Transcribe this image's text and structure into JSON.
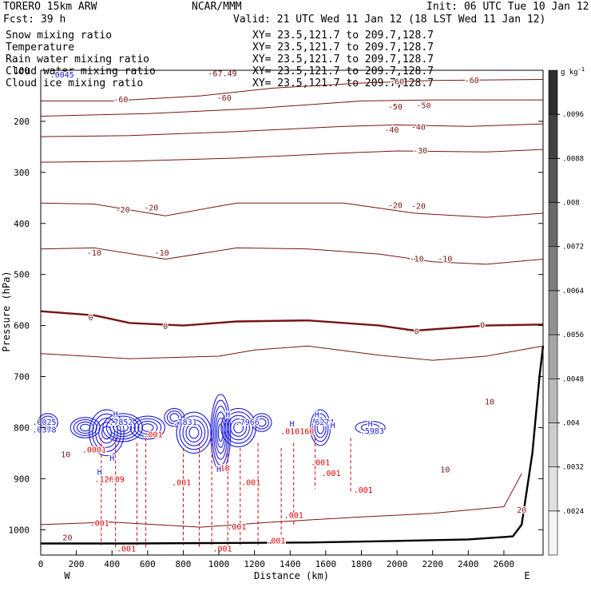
{
  "header": {
    "model": "TORERO  15km ARW",
    "center": "NCAR/MMM",
    "init": "Init: 06 UTC Tue 10 Jan 12",
    "fcst": "Fcst:   39 h",
    "valid": "Valid: 21 UTC Wed 11 Jan 12 (18 LST Wed 11 Jan 12)"
  },
  "fields": [
    {
      "name": "Snow mixing ratio",
      "xy": "XY=  23.5,121.7 to 209.7,128.7",
      "color": "#000000"
    },
    {
      "name": "Temperature",
      "xy": "XY=  23.5,121.7 to 209.7,128.7",
      "color": "#cc0000"
    },
    {
      "name": "Rain water mixing ratio",
      "xy": "XY=  23.5,121.7 to 209.7,128.7",
      "color": "#cc0000"
    },
    {
      "name": "Cloud water mixing ratio",
      "xy": "XY=  23.5,121.7 to 209.7,128.7",
      "color": "#1010cc"
    },
    {
      "name": "Cloud ice mixing ratio",
      "xy": "XY=  23.5,121.7 to 209.7,128.7",
      "color": "#000000"
    }
  ],
  "colors": {
    "temperature": "#7a1414",
    "rain": "#e00000",
    "cloud_water": "#1a1ae0",
    "terrain": "#000000"
  },
  "chart_data": {
    "type": "contour",
    "xlabel": "Distance (km)",
    "ylabel": "Pressure (hPa)",
    "xlim": [
      0,
      2820
    ],
    "ylim": [
      1050,
      100
    ],
    "xticks": [
      0,
      200,
      400,
      600,
      800,
      1000,
      1200,
      1400,
      1600,
      1800,
      2000,
      2200,
      2400,
      2600
    ],
    "yticks": [
      100,
      200,
      300,
      400,
      500,
      600,
      700,
      800,
      900,
      1000
    ],
    "endpoints": {
      "left": "W",
      "right": "E"
    },
    "colorbar": {
      "unit": "g kg",
      "unit_exp": "-1",
      "ticks": [
        ".0096",
        ".0088",
        ".008",
        ".0072",
        ".0064",
        ".0056",
        ".0048",
        ".004",
        ".0032",
        ".0024"
      ],
      "tick_values": [
        0.0096,
        0.0088,
        0.008,
        0.0072,
        0.0064,
        0.0056,
        0.0048,
        0.004,
        0.0032,
        0.0024
      ],
      "range": [
        0.0016,
        0.0104
      ]
    },
    "temperature_contours": [
      {
        "level": -60,
        "p": [
          [
            0,
            160
          ],
          [
            400,
            160
          ],
          [
            900,
            150
          ],
          [
            1300,
            135
          ],
          [
            1800,
            125
          ],
          [
            2200,
            120
          ],
          [
            2820,
            118
          ]
        ]
      },
      {
        "level": -50,
        "p": [
          [
            0,
            190
          ],
          [
            600,
            185
          ],
          [
            1200,
            175
          ],
          [
            1800,
            160
          ],
          [
            2200,
            158
          ],
          [
            2820,
            158
          ]
        ]
      },
      {
        "level": -40,
        "p": [
          [
            0,
            230
          ],
          [
            500,
            228
          ],
          [
            1100,
            220
          ],
          [
            1700,
            210
          ],
          [
            2000,
            207
          ],
          [
            2400,
            210
          ],
          [
            2820,
            205
          ]
        ]
      },
      {
        "level": -30,
        "p": [
          [
            0,
            280
          ],
          [
            500,
            278
          ],
          [
            1100,
            272
          ],
          [
            1700,
            262
          ],
          [
            2000,
            258
          ],
          [
            2500,
            260
          ],
          [
            2820,
            255
          ]
        ]
      },
      {
        "level": -20,
        "p": [
          [
            0,
            360
          ],
          [
            300,
            362
          ],
          [
            700,
            385
          ],
          [
            1100,
            360
          ],
          [
            1700,
            360
          ],
          [
            2100,
            380
          ],
          [
            2500,
            388
          ],
          [
            2820,
            380
          ]
        ]
      },
      {
        "level": -10,
        "p": [
          [
            0,
            450
          ],
          [
            300,
            448
          ],
          [
            700,
            470
          ],
          [
            1100,
            448
          ],
          [
            1500,
            450
          ],
          [
            1900,
            460
          ],
          [
            2200,
            475
          ],
          [
            2500,
            480
          ],
          [
            2820,
            470
          ]
        ]
      },
      {
        "level": 0,
        "major": true,
        "p": [
          [
            0,
            572
          ],
          [
            300,
            580
          ],
          [
            500,
            595
          ],
          [
            800,
            600
          ],
          [
            1100,
            592
          ],
          [
            1500,
            590
          ],
          [
            1900,
            600
          ],
          [
            2100,
            610
          ],
          [
            2500,
            600
          ],
          [
            2820,
            598
          ]
        ]
      },
      {
        "level": 10,
        "p": [
          [
            0,
            655
          ],
          [
            500,
            665
          ],
          [
            1000,
            660
          ],
          [
            1200,
            648
          ],
          [
            1500,
            640
          ],
          [
            1900,
            658
          ],
          [
            2200,
            668
          ],
          [
            2500,
            660
          ],
          [
            2820,
            640
          ]
        ]
      },
      {
        "level": 20,
        "p": [
          [
            0,
            990
          ],
          [
            400,
            985
          ],
          [
            900,
            995
          ],
          [
            1300,
            985
          ],
          [
            1800,
            975
          ],
          [
            2200,
            968
          ],
          [
            2600,
            955
          ],
          [
            2700,
            890
          ]
        ]
      }
    ],
    "temperature_labels": [
      {
        "text": "-67.49",
        "x": 1020,
        "p": 107
      },
      {
        "text": "-60",
        "x": 450,
        "p": 158
      },
      {
        "text": "-60",
        "x": 1030,
        "p": 155
      },
      {
        "text": "-60",
        "x": 2000,
        "p": 123
      },
      {
        "text": "-60",
        "x": 2420,
        "p": 120
      },
      {
        "text": "-50",
        "x": 1990,
        "p": 172
      },
      {
        "text": "-50",
        "x": 2150,
        "p": 170
      },
      {
        "text": "-40",
        "x": 1970,
        "p": 217
      },
      {
        "text": "-40",
        "x": 2120,
        "p": 212
      },
      {
        "text": "-30",
        "x": 2130,
        "p": 258
      },
      {
        "text": "-20",
        "x": 460,
        "p": 374
      },
      {
        "text": "-20",
        "x": 620,
        "p": 370
      },
      {
        "text": "-20",
        "x": 1990,
        "p": 365
      },
      {
        "text": "-20",
        "x": 2120,
        "p": 367
      },
      {
        "text": "-10",
        "x": 300,
        "p": 458
      },
      {
        "text": "-10",
        "x": 680,
        "p": 458
      },
      {
        "text": "-10",
        "x": 2110,
        "p": 470
      },
      {
        "text": "-10",
        "x": 2270,
        "p": 470
      },
      {
        "text": "0",
        "x": 280,
        "p": 585
      },
      {
        "text": "0",
        "x": 700,
        "p": 602
      },
      {
        "text": "0",
        "x": 2110,
        "p": 612
      },
      {
        "text": "0",
        "x": 2480,
        "p": 600
      },
      {
        "text": "10",
        "x": 2520,
        "p": 750
      },
      {
        "text": "10",
        "x": 140,
        "p": 853
      },
      {
        "text": "10",
        "x": 2270,
        "p": 883
      },
      {
        "text": "20",
        "x": 150,
        "p": 1016
      },
      {
        "text": "20",
        "x": 2700,
        "p": 962
      }
    ],
    "rain_labels": [
      {
        "text": ".0001",
        "x": 300,
        "p": 844
      },
      {
        "text": ".001",
        "x": 630,
        "p": 814
      },
      {
        "text": ".1269",
        "x": 370,
        "p": 902
      },
      {
        "text": ".09",
        "x": 430,
        "p": 902
      },
      {
        "text": ".001",
        "x": 790,
        "p": 908
      },
      {
        "text": ".001",
        "x": 1180,
        "p": 908
      },
      {
        "text": ".18",
        "x": 1020,
        "p": 880
      },
      {
        "text": ".001",
        "x": 1630,
        "p": 890
      },
      {
        "text": ".001",
        "x": 1570,
        "p": 869
      },
      {
        "text": ".010160",
        "x": 1440,
        "p": 808
      },
      {
        "text": ".001",
        "x": 1810,
        "p": 923
      },
      {
        "text": ".001",
        "x": 1420,
        "p": 972
      },
      {
        "text": ".001",
        "x": 330,
        "p": 988
      },
      {
        "text": ".001",
        "x": 1100,
        "p": 995
      },
      {
        "text": ".001",
        "x": 1320,
        "p": 1022
      },
      {
        "text": ".001",
        "x": 480,
        "p": 1038
      },
      {
        "text": ".001",
        "x": 1020,
        "p": 1038
      }
    ],
    "cloud_labels": [
      {
        "text": ".0025",
        "x": 20,
        "p": 790
      },
      {
        "text": ".0378",
        "x": 20,
        "p": 805
      },
      {
        "text": ".7852",
        "x": 450,
        "p": 790
      },
      {
        "text": ".7831",
        "x": 810,
        "p": 790
      },
      {
        "text": ".7966",
        "x": 1160,
        "p": 790
      },
      {
        "text": ".6274",
        "x": 1580,
        "p": 790
      },
      {
        "text": ".5983",
        "x": 1860,
        "p": 807
      },
      {
        "text": ".0045",
        "x": 120,
        "p": 109
      }
    ],
    "high_markers": [
      {
        "text": "H",
        "x": 330,
        "p": 888
      },
      {
        "text": "H",
        "x": 400,
        "p": 860
      },
      {
        "text": "H",
        "x": 420,
        "p": 774
      },
      {
        "text": "H",
        "x": 1000,
        "p": 882
      },
      {
        "text": "H",
        "x": 1050,
        "p": 775
      },
      {
        "text": "H",
        "x": 1410,
        "p": 793
      },
      {
        "text": "H",
        "x": 1550,
        "p": 775
      },
      {
        "text": "H",
        "x": 1640,
        "p": 796
      },
      {
        "text": "H",
        "x": 1850,
        "p": 793
      }
    ],
    "rain_columns": [
      {
        "x": 340,
        "top": 820,
        "bottom": 1030
      },
      {
        "x": 420,
        "top": 820,
        "bottom": 1040
      },
      {
        "x": 540,
        "top": 830,
        "bottom": 1030
      },
      {
        "x": 590,
        "top": 820,
        "bottom": 1035
      },
      {
        "x": 800,
        "top": 840,
        "bottom": 1030
      },
      {
        "x": 890,
        "top": 830,
        "bottom": 1035
      },
      {
        "x": 960,
        "top": 820,
        "bottom": 1030
      },
      {
        "x": 1050,
        "top": 840,
        "bottom": 1035
      },
      {
        "x": 1120,
        "top": 840,
        "bottom": 1030
      },
      {
        "x": 1220,
        "top": 830,
        "bottom": 1030
      },
      {
        "x": 1350,
        "top": 840,
        "bottom": 1010
      },
      {
        "x": 1420,
        "top": 830,
        "bottom": 990
      },
      {
        "x": 1540,
        "top": 820,
        "bottom": 920
      },
      {
        "x": 1740,
        "top": 820,
        "bottom": 925
      }
    ],
    "cloud_cells": [
      {
        "x": 40,
        "p": 790,
        "w": 40,
        "h": 35,
        "n": 3
      },
      {
        "x": 250,
        "p": 800,
        "w": 60,
        "h": 40,
        "n": 4
      },
      {
        "x": 370,
        "p": 810,
        "w": 70,
        "h": 90,
        "n": 5
      },
      {
        "x": 460,
        "p": 800,
        "w": 80,
        "h": 55,
        "n": 5
      },
      {
        "x": 600,
        "p": 800,
        "w": 70,
        "h": 45,
        "n": 4
      },
      {
        "x": 750,
        "p": 780,
        "w": 40,
        "h": 35,
        "n": 3
      },
      {
        "x": 860,
        "p": 810,
        "w": 70,
        "h": 80,
        "n": 5
      },
      {
        "x": 1010,
        "p": 810,
        "w": 40,
        "h": 150,
        "n": 6
      },
      {
        "x": 1110,
        "p": 800,
        "w": 70,
        "h": 75,
        "n": 5
      },
      {
        "x": 1240,
        "p": 790,
        "w": 40,
        "h": 35,
        "n": 3
      },
      {
        "x": 1570,
        "p": 800,
        "w": 40,
        "h": 70,
        "n": 4
      },
      {
        "x": 1850,
        "p": 800,
        "w": 60,
        "h": 25,
        "n": 2
      }
    ],
    "terrain": [
      [
        0,
        1027
      ],
      [
        500,
        1027
      ],
      [
        1000,
        1026
      ],
      [
        1500,
        1025
      ],
      [
        2000,
        1022
      ],
      [
        2400,
        1019
      ],
      [
        2650,
        1013
      ],
      [
        2700,
        990
      ],
      [
        2760,
        850
      ],
      [
        2800,
        700
      ],
      [
        2820,
        640
      ]
    ]
  }
}
